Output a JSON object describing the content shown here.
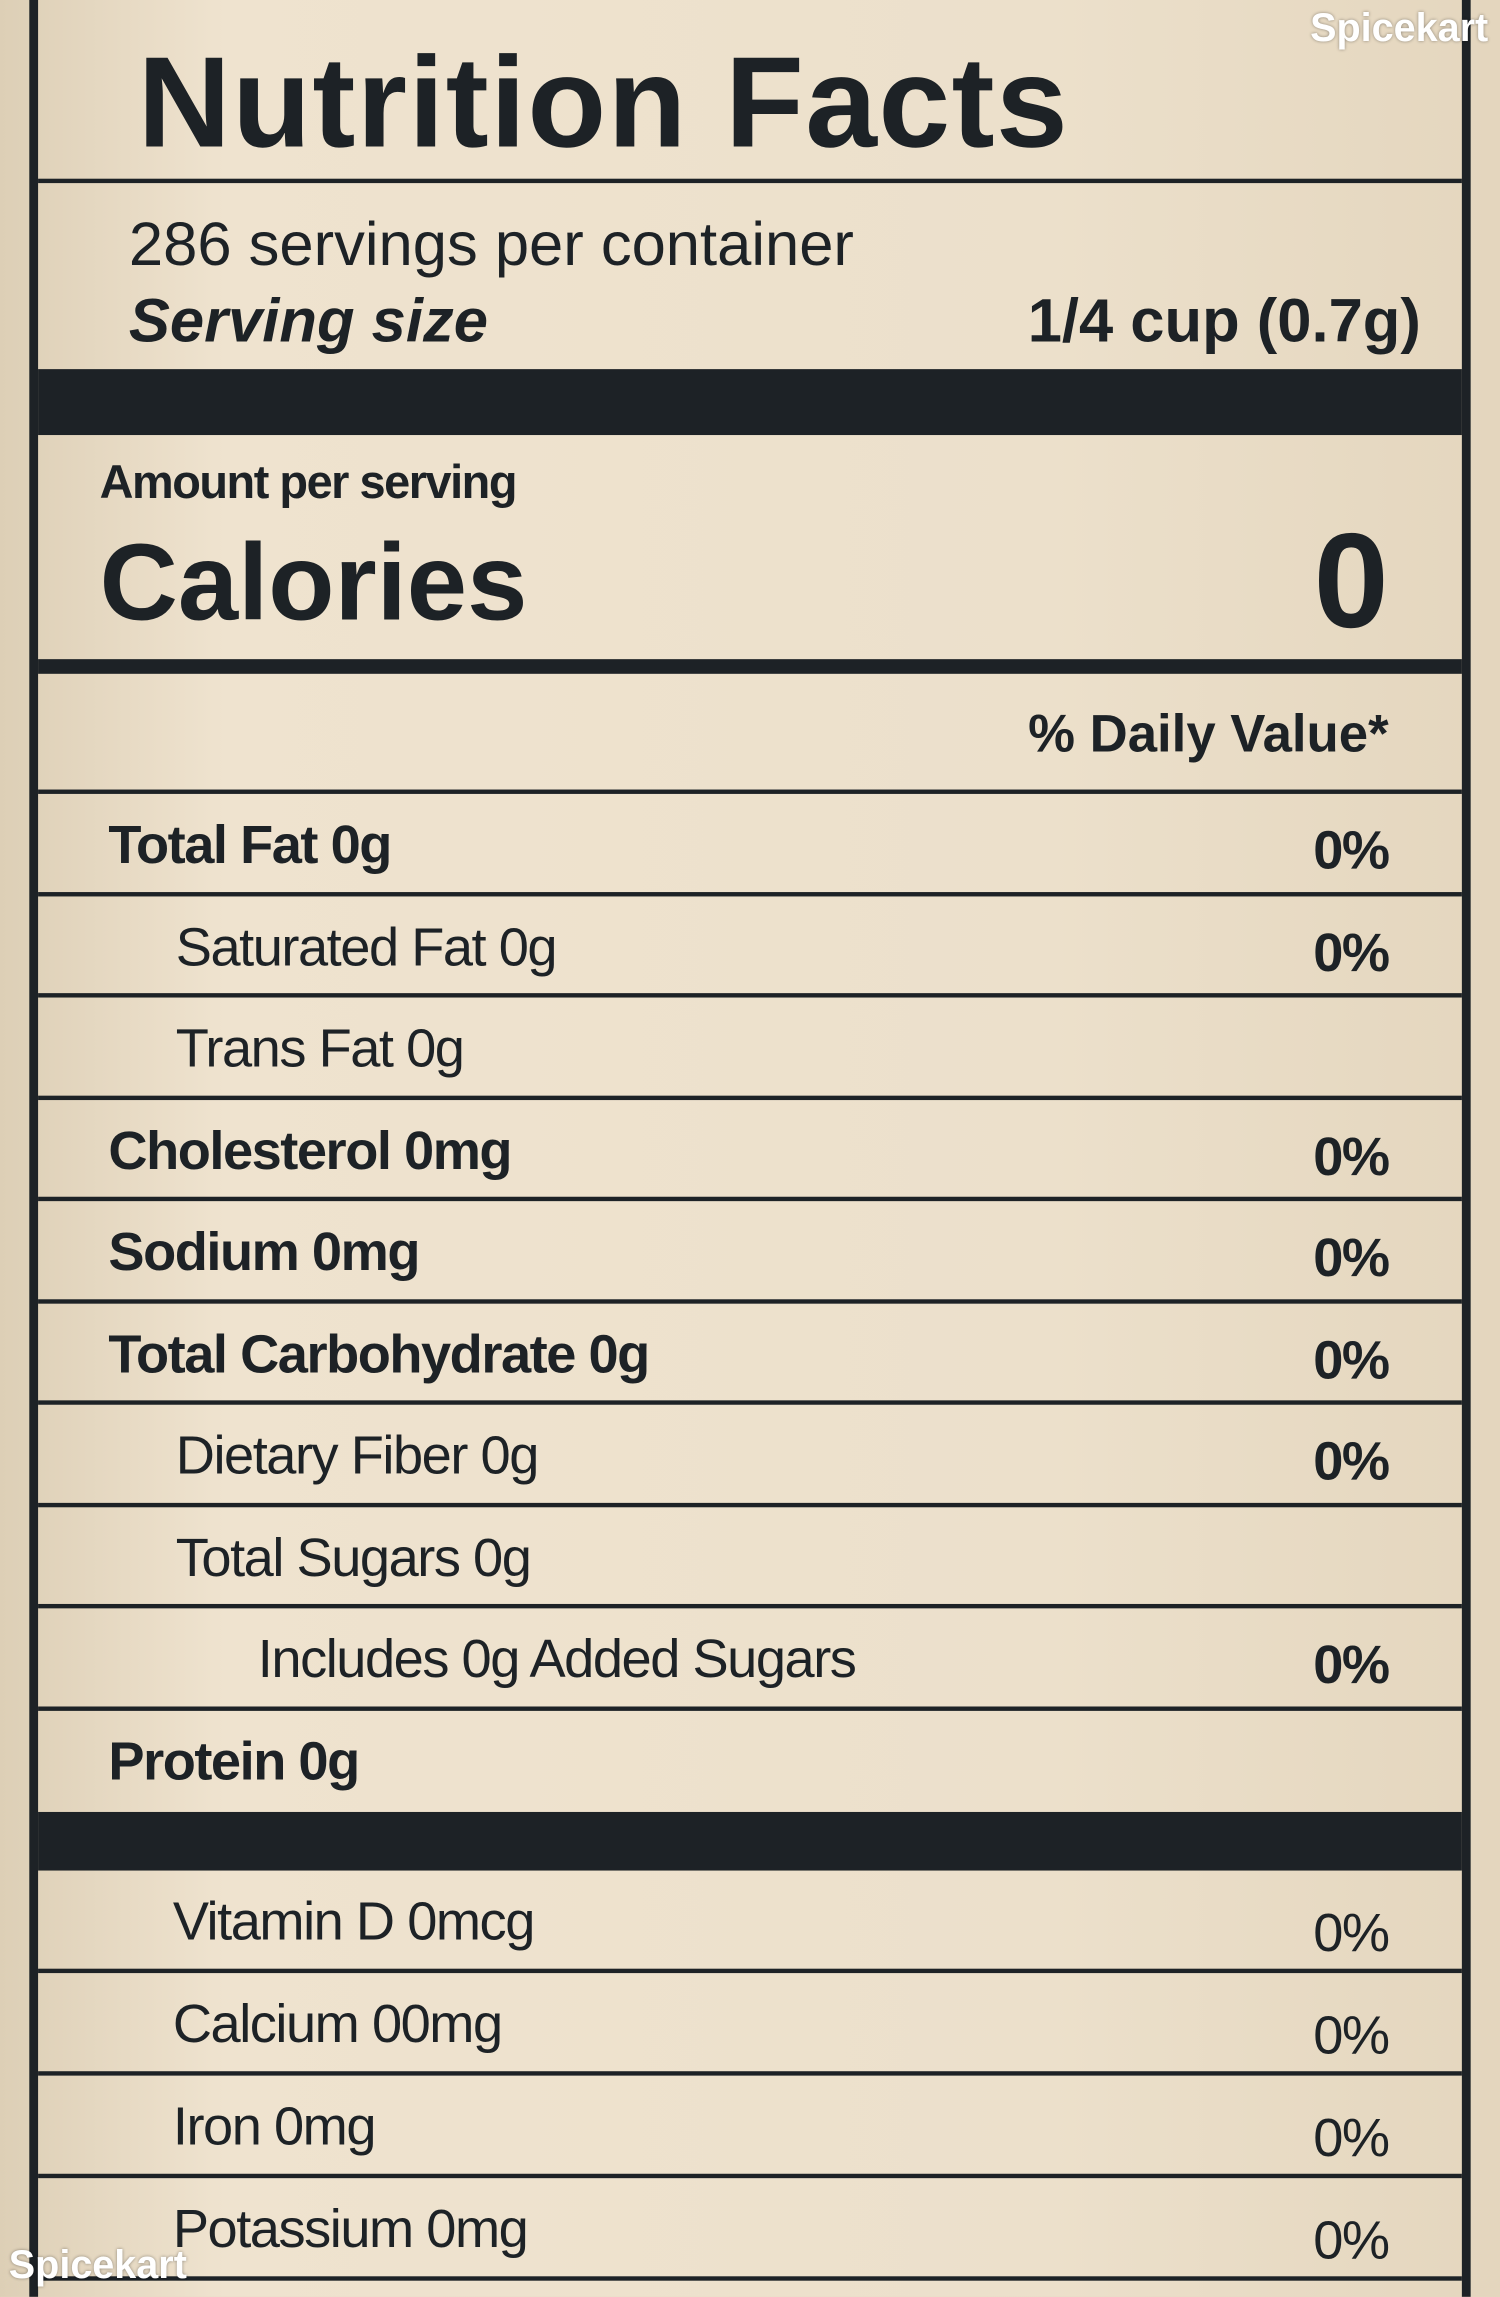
{
  "watermark_top": "Spicekart",
  "watermark_bottom": "Spicekart",
  "label": {
    "title": "Nutrition Facts",
    "servings": "286 servings per container",
    "serving_size_label": "Serving size",
    "serving_size_value": "1/4 cup (0.7g)",
    "amount_per_serving": "Amount per serving",
    "calories_label": "Calories",
    "calories_value": "0",
    "daily_value_header": "% Daily Value*",
    "nutrients": [
      {
        "label": "Total Fat 0g",
        "dv": "0%"
      },
      {
        "label": "Saturated Fat 0g",
        "dv": "0%"
      },
      {
        "label": "Trans Fat 0g"
      },
      {
        "label": "Cholesterol 0mg",
        "dv": "0%"
      },
      {
        "label": "Sodium 0mg",
        "dv": "0%"
      },
      {
        "label": "Total Carbohydrate 0g",
        "dv": "0%"
      },
      {
        "label": "Dietary Fiber 0g",
        "dv": "0%"
      },
      {
        "label": "Total Sugars 0g"
      },
      {
        "label": "Includes 0g Added Sugars",
        "dv": "0%"
      },
      {
        "label": "Protein 0g"
      }
    ],
    "vitamins": [
      {
        "label": "Vitamin D 0mcg",
        "dv": "0%"
      },
      {
        "label": "Calcium 00mg",
        "dv": "0%"
      },
      {
        "label": "Iron 0mg",
        "dv": "0%"
      },
      {
        "label": "Potassium 0mg",
        "dv": "0%"
      }
    ]
  }
}
